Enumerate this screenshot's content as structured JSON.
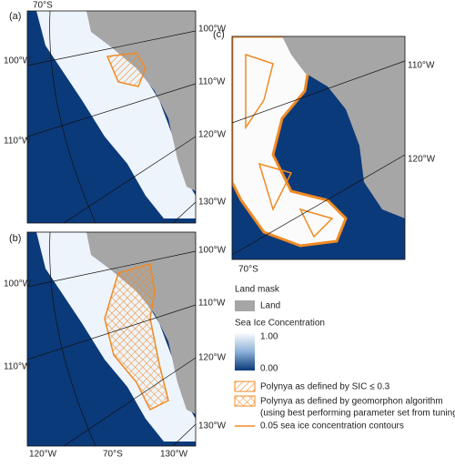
{
  "panels": [
    {
      "label": "(a)",
      "grid_labels": [
        "70°S",
        "100°W",
        "100°W",
        "110°W",
        "110°W",
        "120°W",
        "130°W"
      ]
    },
    {
      "label": "(b)",
      "grid_labels": [
        "100°W",
        "100°W",
        "110°W",
        "110°W",
        "120°W",
        "130°W",
        "120°W",
        "70°S",
        "130°W"
      ]
    },
    {
      "label": "(c)",
      "grid_labels": [
        "110°W",
        "120°W",
        "70°S"
      ]
    }
  ],
  "legend": {
    "land_title": "Land mask",
    "land": "Land",
    "sic_title": "Sea Ice Concentration",
    "sic_max": "1.00",
    "sic_min": "0.00",
    "polynya_sic": "Polynya as defined by SIC ≤ 0.3",
    "polynya_geo": "Polynya as defined by geomorphon algorithm",
    "polynya_geo_note": "(using best performing parameter set from tuning)",
    "contours": "0.05 sea ice concentration contours"
  }
}
